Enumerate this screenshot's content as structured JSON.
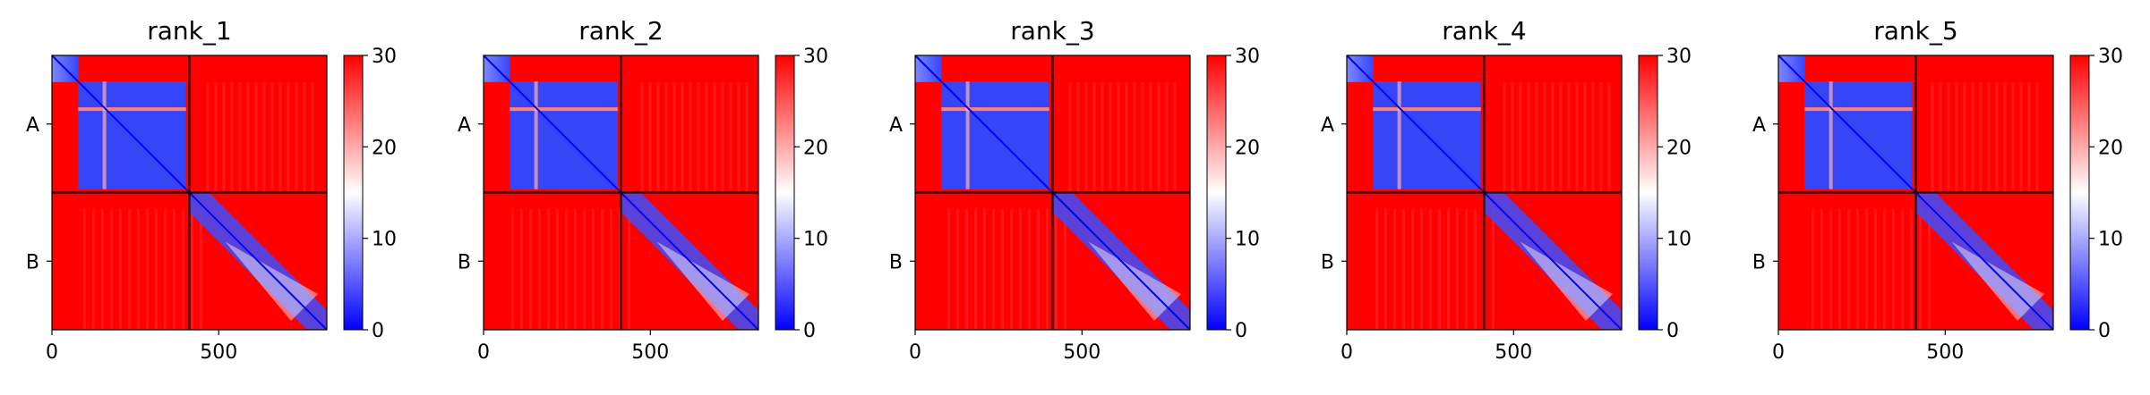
{
  "chart_data": [
    {
      "type": "heatmap",
      "title": "rank_1",
      "chains": [
        "A",
        "B"
      ],
      "chain_boundary": 412,
      "xlim": [
        0,
        824
      ],
      "xticks": [
        0,
        500
      ],
      "colorbar": {
        "range": [
          0,
          30
        ],
        "ticks": [
          "0",
          "10",
          "20",
          "30"
        ],
        "colormap": "bwr"
      },
      "variant": 1
    },
    {
      "type": "heatmap",
      "title": "rank_2",
      "chains": [
        "A",
        "B"
      ],
      "chain_boundary": 412,
      "xlim": [
        0,
        824
      ],
      "xticks": [
        0,
        500
      ],
      "colorbar": {
        "range": [
          0,
          30
        ],
        "ticks": [
          "0",
          "10",
          "20",
          "30"
        ],
        "colormap": "bwr"
      },
      "variant": 2
    },
    {
      "type": "heatmap",
      "title": "rank_3",
      "chains": [
        "A",
        "B"
      ],
      "chain_boundary": 412,
      "xlim": [
        0,
        824
      ],
      "xticks": [
        0,
        500
      ],
      "colorbar": {
        "range": [
          0,
          30
        ],
        "ticks": [
          "0",
          "10",
          "20",
          "30"
        ],
        "colormap": "bwr"
      },
      "variant": 3
    },
    {
      "type": "heatmap",
      "title": "rank_4",
      "chains": [
        "A",
        "B"
      ],
      "chain_boundary": 412,
      "xlim": [
        0,
        824
      ],
      "xticks": [
        0,
        500
      ],
      "colorbar": {
        "range": [
          0,
          30
        ],
        "ticks": [
          "0",
          "10",
          "20",
          "30"
        ],
        "colormap": "bwr"
      },
      "variant": 4
    },
    {
      "type": "heatmap",
      "title": "rank_5",
      "chains": [
        "A",
        "B"
      ],
      "chain_boundary": 412,
      "xlim": [
        0,
        824
      ],
      "xticks": [
        0,
        500
      ],
      "colorbar": {
        "range": [
          0,
          30
        ],
        "ticks": [
          "0",
          "10",
          "20",
          "30"
        ],
        "colormap": "bwr"
      },
      "variant": 5
    }
  ],
  "colors": {
    "high": "#ff0000",
    "mid": "#ffffff",
    "low": "#0000ff",
    "axis": "#000000"
  }
}
